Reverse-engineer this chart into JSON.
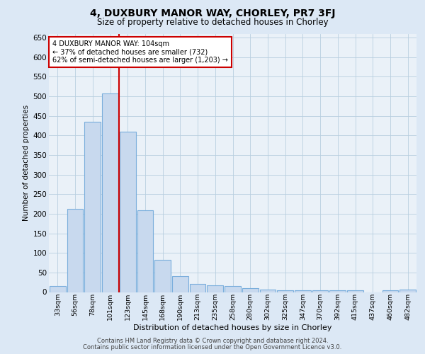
{
  "title": "4, DUXBURY MANOR WAY, CHORLEY, PR7 3FJ",
  "subtitle": "Size of property relative to detached houses in Chorley",
  "xlabel": "Distribution of detached houses by size in Chorley",
  "ylabel": "Number of detached properties",
  "footer_line1": "Contains HM Land Registry data © Crown copyright and database right 2024.",
  "footer_line2": "Contains public sector information licensed under the Open Government Licence v3.0.",
  "annotation_line1": "4 DUXBURY MANOR WAY: 104sqm",
  "annotation_line2": "← 37% of detached houses are smaller (732)",
  "annotation_line3": "62% of semi-detached houses are larger (1,203) →",
  "bar_edge_color": "#7aaedc",
  "bar_fill_color": "#c8d9ee",
  "redline_color": "#cc0000",
  "annotation_box_edge": "#cc0000",
  "bg_color": "#dce8f5",
  "plot_bg": "#eaf1f8",
  "grid_color": "#b8cfe0",
  "categories": [
    "33sqm",
    "56sqm",
    "78sqm",
    "101sqm",
    "123sqm",
    "145sqm",
    "168sqm",
    "190sqm",
    "213sqm",
    "235sqm",
    "258sqm",
    "280sqm",
    "302sqm",
    "325sqm",
    "347sqm",
    "370sqm",
    "392sqm",
    "415sqm",
    "437sqm",
    "460sqm",
    "482sqm"
  ],
  "values": [
    15,
    212,
    435,
    507,
    410,
    208,
    83,
    40,
    20,
    17,
    15,
    10,
    6,
    4,
    4,
    4,
    4,
    4,
    0,
    4,
    6
  ],
  "redline_x": 3.5,
  "ylim": [
    0,
    660
  ],
  "yticks": [
    0,
    50,
    100,
    150,
    200,
    250,
    300,
    350,
    400,
    450,
    500,
    550,
    600,
    650
  ]
}
